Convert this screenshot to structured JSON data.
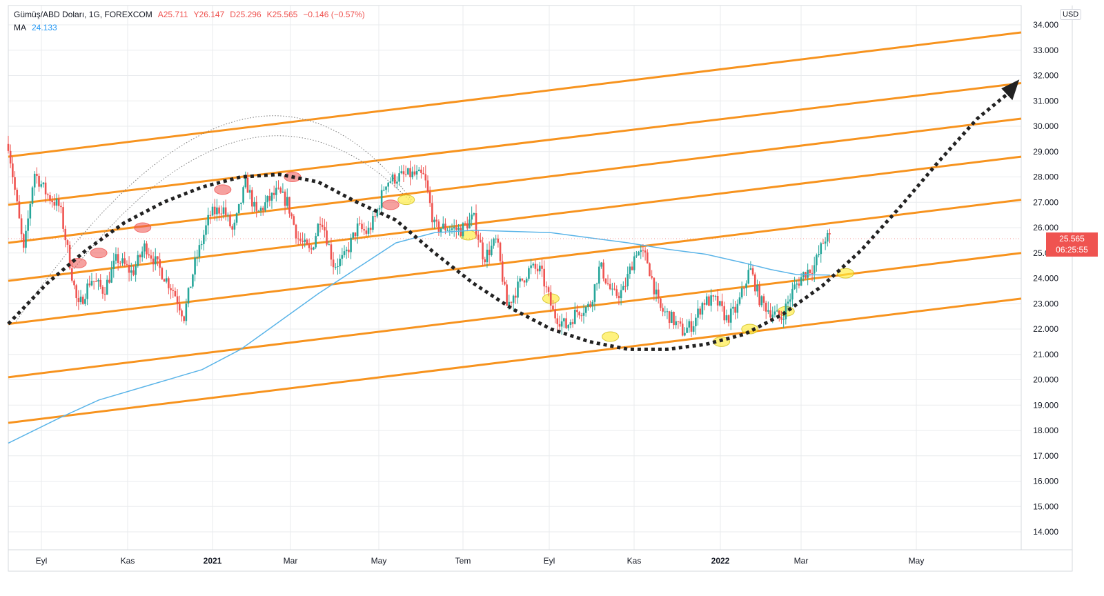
{
  "legend": {
    "symbol": "Gümüş/ABD Doları, 1G, FOREXCOM",
    "open": "A25.711",
    "high": "Y26.147",
    "low": "D25.296",
    "close": "K25.565",
    "change": "−0.146 (−0.57%)",
    "ma_label": "MA",
    "ma_value": "24.133"
  },
  "currency_badge": "USD",
  "last_price": "25.565",
  "countdown": "06:25:55",
  "colors": {
    "up": "#26a69a",
    "down": "#ef5350",
    "ma": "#5ab4e8",
    "channel": "#f7931e",
    "grid": "#e9ebee"
  },
  "chart_data": {
    "type": "candlestick",
    "symbol": "Gümüş/ABD Doları",
    "interval": "1G",
    "currency": "USD",
    "y_ticks": [
      "34.000",
      "33.000",
      "32.000",
      "31.000",
      "30.000",
      "29.000",
      "28.000",
      "27.000",
      "26.000",
      "25.000",
      "24.000",
      "23.000",
      "22.000",
      "21.000",
      "20.000",
      "19.000",
      "18.000",
      "17.000",
      "16.000",
      "15.000",
      "14.000"
    ],
    "ylim": [
      13.2,
      34.3
    ],
    "x_ticks": [
      {
        "label": "Eyl",
        "bold": false
      },
      {
        "label": "Kas",
        "bold": false
      },
      {
        "label": "2021",
        "bold": true
      },
      {
        "label": "Mar",
        "bold": false
      },
      {
        "label": "May",
        "bold": false
      },
      {
        "label": "Tem",
        "bold": false
      },
      {
        "label": "Eyl",
        "bold": false
      },
      {
        "label": "Kas",
        "bold": false
      },
      {
        "label": "2022",
        "bold": true
      },
      {
        "label": "Mar",
        "bold": false
      },
      {
        "label": "May",
        "bold": false
      }
    ],
    "last_price": 25.565,
    "price_path": [
      [
        0,
        29.3
      ],
      [
        0.6,
        25.0
      ],
      [
        1.0,
        28.2
      ],
      [
        1.5,
        27.3
      ],
      [
        2.0,
        26.8
      ],
      [
        2.7,
        22.8
      ],
      [
        3.2,
        24.0
      ],
      [
        3.7,
        23.5
      ],
      [
        4.2,
        24.8
      ],
      [
        4.8,
        24.2
      ],
      [
        5.3,
        25.3
      ],
      [
        5.9,
        24.3
      ],
      [
        6.4,
        23.5
      ],
      [
        6.8,
        22.5
      ],
      [
        7.2,
        24.5
      ],
      [
        7.8,
        26.5
      ],
      [
        8.3,
        26.8
      ],
      [
        8.7,
        25.8
      ],
      [
        9.0,
        27.0
      ],
      [
        9.2,
        27.8
      ],
      [
        9.6,
        26.5
      ],
      [
        10.0,
        27.0
      ],
      [
        10.4,
        27.4
      ],
      [
        10.8,
        27.0
      ],
      [
        11.2,
        25.6
      ],
      [
        11.7,
        25.0
      ],
      [
        12.1,
        26.5
      ],
      [
        12.6,
        24.5
      ],
      [
        13.0,
        24.8
      ],
      [
        13.5,
        26.0
      ],
      [
        13.9,
        25.8
      ],
      [
        14.2,
        26.4
      ],
      [
        14.6,
        27.8
      ],
      [
        15.1,
        28.0
      ],
      [
        15.6,
        28.1
      ],
      [
        16.1,
        28.0
      ],
      [
        16.5,
        26.0
      ],
      [
        17.0,
        26.0
      ],
      [
        17.5,
        25.9
      ],
      [
        18.0,
        26.4
      ],
      [
        18.4,
        24.8
      ],
      [
        18.9,
        25.5
      ],
      [
        19.3,
        22.9
      ],
      [
        19.8,
        23.8
      ],
      [
        20.2,
        24.4
      ],
      [
        20.6,
        24.3
      ],
      [
        21.1,
        22.6
      ],
      [
        21.6,
        22.1
      ],
      [
        22.0,
        22.7
      ],
      [
        22.5,
        22.9
      ],
      [
        22.9,
        24.5
      ],
      [
        23.4,
        23.3
      ],
      [
        23.8,
        23.5
      ],
      [
        24.3,
        25.1
      ],
      [
        24.7,
        24.8
      ],
      [
        25.2,
        22.8
      ],
      [
        25.6,
        22.5
      ],
      [
        26.1,
        21.9
      ],
      [
        26.5,
        22.2
      ],
      [
        26.9,
        23.1
      ],
      [
        27.4,
        23.1
      ],
      [
        27.8,
        22.4
      ],
      [
        28.2,
        22.8
      ],
      [
        28.7,
        24.4
      ],
      [
        29.1,
        23.1
      ],
      [
        29.5,
        22.7
      ],
      [
        29.9,
        22.4
      ],
      [
        30.4,
        23.6
      ],
      [
        30.8,
        24.2
      ],
      [
        31.2,
        24.5
      ],
      [
        31.6,
        25.6
      ],
      [
        31.8,
        25.565
      ]
    ],
    "moving_average": {
      "name": "MA",
      "value": 24.133,
      "points": [
        [
          0,
          17.5
        ],
        [
          2.0,
          18.5
        ],
        [
          3.5,
          19.2
        ],
        [
          5.5,
          19.8
        ],
        [
          7.5,
          20.4
        ],
        [
          9.0,
          21.2
        ],
        [
          10.5,
          22.3
        ],
        [
          12.0,
          23.4
        ],
        [
          13.5,
          24.4
        ],
        [
          15.0,
          25.4
        ],
        [
          16.5,
          25.8
        ],
        [
          18.0,
          25.9
        ],
        [
          19.5,
          25.85
        ],
        [
          21.0,
          25.8
        ],
        [
          22.5,
          25.6
        ],
        [
          24.0,
          25.4
        ],
        [
          25.5,
          25.15
        ],
        [
          27.0,
          24.95
        ],
        [
          28.5,
          24.6
        ],
        [
          29.5,
          24.35
        ],
        [
          30.5,
          24.15
        ],
        [
          31.8,
          24.13
        ]
      ]
    },
    "channel_lines": [
      {
        "start": 18.3,
        "end": 23.2
      },
      {
        "start": 20.1,
        "end": 25.0
      },
      {
        "start": 22.2,
        "end": 27.1
      },
      {
        "start": 23.9,
        "end": 28.8
      },
      {
        "start": 25.4,
        "end": 30.3
      },
      {
        "start": 26.9,
        "end": 31.7
      },
      {
        "start": 28.8,
        "end": 33.7
      }
    ],
    "projection_arrow": [
      [
        0,
        22.2
      ],
      [
        1.5,
        23.8
      ],
      [
        3.0,
        25.1
      ],
      [
        4.5,
        26.2
      ],
      [
        6.0,
        27.0
      ],
      [
        7.5,
        27.6
      ],
      [
        9.0,
        28.0
      ],
      [
        10.5,
        28.1
      ],
      [
        12.0,
        27.8
      ],
      [
        13.5,
        27.0
      ],
      [
        15.0,
        26.3
      ],
      [
        16.5,
        25.0
      ],
      [
        18.0,
        23.8
      ],
      [
        19.5,
        22.8
      ],
      [
        21.0,
        22.0
      ],
      [
        22.5,
        21.5
      ],
      [
        24.0,
        21.2
      ],
      [
        25.5,
        21.2
      ],
      [
        27.0,
        21.4
      ],
      [
        28.5,
        21.8
      ],
      [
        30.0,
        22.6
      ],
      [
        31.5,
        23.7
      ],
      [
        33.0,
        25.1
      ],
      [
        34.5,
        26.8
      ],
      [
        36.0,
        28.6
      ],
      [
        37.5,
        30.3
      ],
      [
        38.7,
        31.3
      ]
    ],
    "highlight_markers": [
      {
        "x": 2.7,
        "y": 24.6,
        "color": "red"
      },
      {
        "x": 3.5,
        "y": 25.0,
        "color": "red"
      },
      {
        "x": 5.2,
        "y": 26.0,
        "color": "red"
      },
      {
        "x": 8.3,
        "y": 27.5,
        "color": "red"
      },
      {
        "x": 11.0,
        "y": 28.0,
        "color": "red"
      },
      {
        "x": 14.8,
        "y": 26.9,
        "color": "red"
      },
      {
        "x": 15.4,
        "y": 27.1,
        "color": "yellow"
      },
      {
        "x": 17.8,
        "y": 25.7,
        "color": "yellow"
      },
      {
        "x": 21.0,
        "y": 23.2,
        "color": "yellow"
      },
      {
        "x": 23.3,
        "y": 21.7,
        "color": "yellow"
      },
      {
        "x": 27.6,
        "y": 21.5,
        "color": "yellow"
      },
      {
        "x": 28.7,
        "y": 22.0,
        "color": "yellow"
      },
      {
        "x": 30.1,
        "y": 22.7,
        "color": "yellow"
      },
      {
        "x": 32.4,
        "y": 24.2,
        "color": "yellow"
      }
    ],
    "grid": true,
    "legend_position": "top-left"
  }
}
